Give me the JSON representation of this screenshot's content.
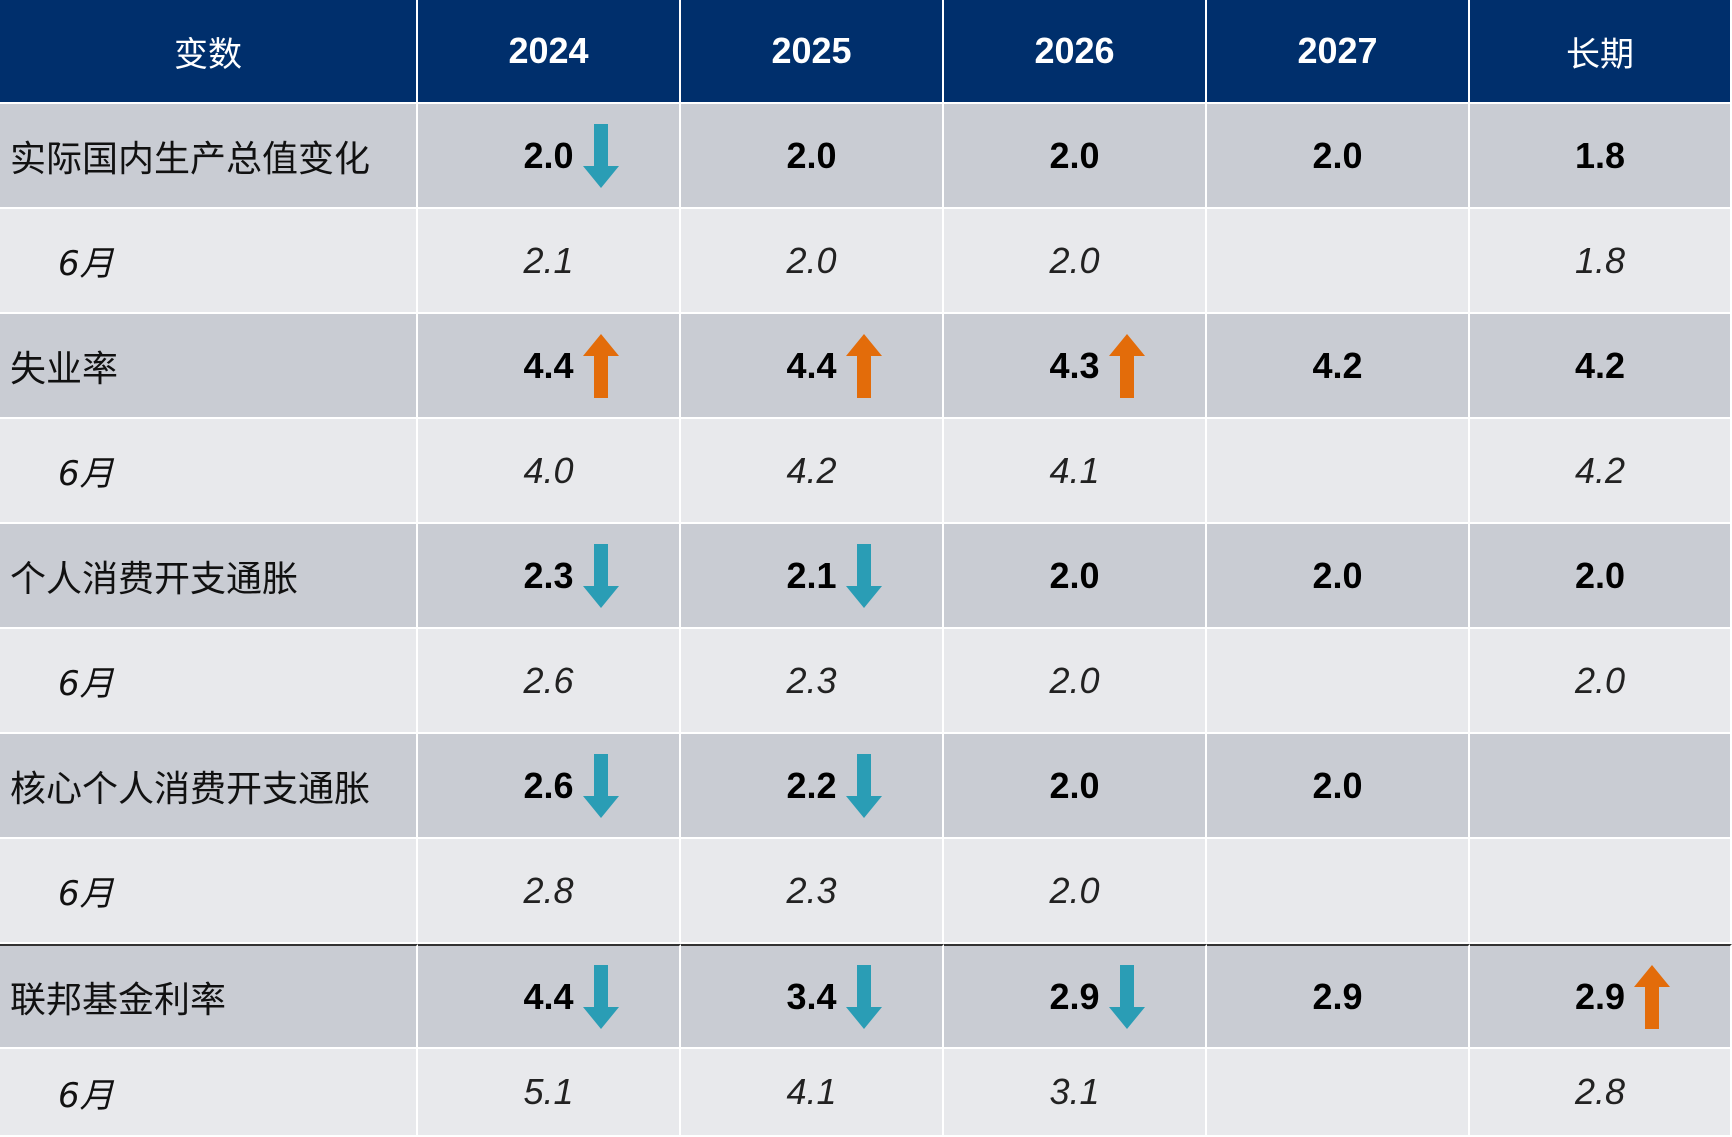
{
  "chart_data": {
    "type": "table",
    "columns": [
      "变数",
      "2024",
      "2025",
      "2026",
      "2027",
      "长期"
    ],
    "arrow_colors": {
      "down": "#2a9db5",
      "up": "#e36c0a"
    },
    "rows": [
      {
        "label": "实际国内生产总值变化",
        "kind": "main",
        "values": [
          "2.0",
          "2.0",
          "2.0",
          "2.0",
          "1.8"
        ],
        "arrows": [
          "down",
          "",
          "",
          "",
          ""
        ]
      },
      {
        "label": "6月",
        "kind": "sub",
        "values": [
          "2.1",
          "2.0",
          "2.0",
          "",
          "1.8"
        ],
        "arrows": [
          "",
          "",
          "",
          "",
          ""
        ]
      },
      {
        "label": "失业率",
        "kind": "main",
        "values": [
          "4.4",
          "4.4",
          "4.3",
          "4.2",
          "4.2"
        ],
        "arrows": [
          "up",
          "up",
          "up",
          "",
          ""
        ]
      },
      {
        "label": "6月",
        "kind": "sub",
        "values": [
          "4.0",
          "4.2",
          "4.1",
          "",
          "4.2"
        ],
        "arrows": [
          "",
          "",
          "",
          "",
          ""
        ]
      },
      {
        "label": "个人消费开支通胀",
        "kind": "main",
        "values": [
          "2.3",
          "2.1",
          "2.0",
          "2.0",
          "2.0"
        ],
        "arrows": [
          "down",
          "down",
          "",
          "",
          ""
        ]
      },
      {
        "label": "6月",
        "kind": "sub",
        "values": [
          "2.6",
          "2.3",
          "2.0",
          "",
          "2.0"
        ],
        "arrows": [
          "",
          "",
          "",
          "",
          ""
        ]
      },
      {
        "label": "核心个人消费开支通胀",
        "kind": "main",
        "values": [
          "2.6",
          "2.2",
          "2.0",
          "2.0",
          ""
        ],
        "arrows": [
          "down",
          "down",
          "",
          "",
          ""
        ]
      },
      {
        "label": "6月",
        "kind": "sub",
        "values": [
          "2.8",
          "2.3",
          "2.0",
          "",
          ""
        ],
        "arrows": [
          "",
          "",
          "",
          "",
          ""
        ]
      },
      {
        "label": "联邦基金利率",
        "kind": "main",
        "values": [
          "4.4",
          "3.4",
          "2.9",
          "2.9",
          "2.9"
        ],
        "arrows": [
          "down",
          "down",
          "down",
          "",
          "up"
        ]
      },
      {
        "label": "6月",
        "kind": "sub",
        "values": [
          "5.1",
          "4.1",
          "3.1",
          "",
          "2.8"
        ],
        "arrows": [
          "",
          "",
          "",
          "",
          ""
        ]
      }
    ]
  }
}
